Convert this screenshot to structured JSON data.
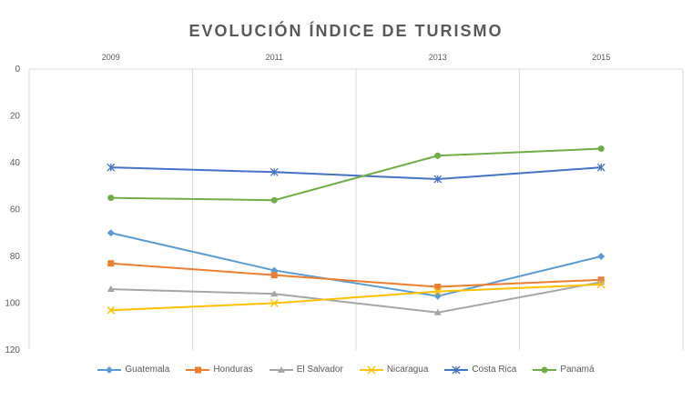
{
  "chart_data": {
    "type": "line",
    "title": "EVOLUCIÓN ÍNDICE DE TURISMO",
    "xlabel": "",
    "ylabel": "",
    "categories": [
      "2009",
      "2011",
      "2013",
      "2015"
    ],
    "x_axis_position": "top",
    "y_axis_reversed": true,
    "ylim": [
      0,
      120
    ],
    "yticks": [
      0,
      20,
      40,
      60,
      80,
      100,
      120
    ],
    "grid": "vertical",
    "legend_position": "bottom",
    "series": [
      {
        "name": "Guatemala",
        "color": "#5b9bd5",
        "marker": "diamond",
        "values": [
          70,
          86,
          97,
          80
        ]
      },
      {
        "name": "Honduras",
        "color": "#ed7d31",
        "marker": "square",
        "values": [
          83,
          88,
          93,
          90
        ]
      },
      {
        "name": "El Salvador",
        "color": "#a5a5a5",
        "marker": "triangle",
        "values": [
          94,
          96,
          104,
          91
        ]
      },
      {
        "name": "Nicaragua",
        "color": "#ffc000",
        "marker": "x",
        "values": [
          103,
          100,
          95,
          92
        ]
      },
      {
        "name": "Costa Rica",
        "color": "#4472c4",
        "marker": "asterisk",
        "values": [
          42,
          44,
          47,
          42
        ]
      },
      {
        "name": "Panamá",
        "color": "#70ad47",
        "marker": "circle",
        "values": [
          55,
          56,
          37,
          34
        ]
      }
    ]
  }
}
